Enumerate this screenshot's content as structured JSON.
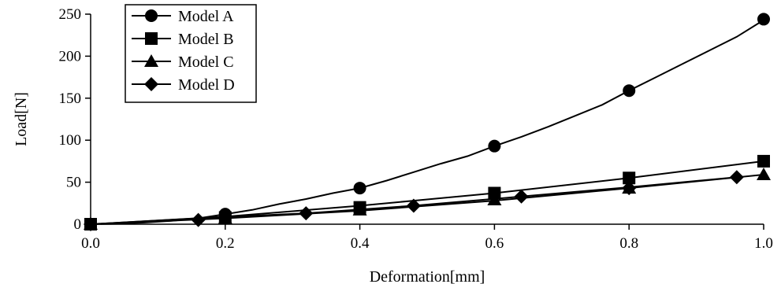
{
  "chart_data": {
    "type": "line",
    "xlabel": "Deformation[mm]",
    "ylabel": "Load[N]",
    "xlim": [
      0,
      1.0
    ],
    "ylim": [
      0,
      250
    ],
    "x_ticks": [
      "0.0",
      "0.2",
      "0.4",
      "0.6",
      "0.8",
      "1.0"
    ],
    "y_ticks": [
      "0",
      "50",
      "100",
      "150",
      "200",
      "250"
    ],
    "grid": false,
    "legend_position": "top-left",
    "series": [
      {
        "name": "Model A",
        "marker": "circle",
        "line": [
          [
            0,
            0
          ],
          [
            0.04,
            0.5
          ],
          [
            0.08,
            2
          ],
          [
            0.12,
            4
          ],
          [
            0.16,
            7
          ],
          [
            0.2,
            12
          ],
          [
            0.24,
            17
          ],
          [
            0.28,
            24
          ],
          [
            0.32,
            30
          ],
          [
            0.36,
            37
          ],
          [
            0.4,
            43
          ],
          [
            0.44,
            52
          ],
          [
            0.48,
            62
          ],
          [
            0.52,
            72
          ],
          [
            0.56,
            81
          ],
          [
            0.6,
            93
          ],
          [
            0.64,
            104
          ],
          [
            0.68,
            116
          ],
          [
            0.72,
            129
          ],
          [
            0.76,
            142
          ],
          [
            0.8,
            159
          ],
          [
            0.84,
            175
          ],
          [
            0.88,
            191
          ],
          [
            0.92,
            207
          ],
          [
            0.96,
            223
          ],
          [
            1.0,
            243
          ]
        ],
        "markers": [
          [
            0,
            0
          ],
          [
            0.2,
            12
          ],
          [
            0.4,
            43
          ],
          [
            0.6,
            93
          ],
          [
            0.8,
            159
          ],
          [
            1.0,
            244
          ]
        ]
      },
      {
        "name": "Model B",
        "marker": "square",
        "line": [
          [
            0,
            0
          ],
          [
            0.2,
            9
          ],
          [
            0.4,
            22
          ],
          [
            0.6,
            37
          ],
          [
            0.8,
            55
          ],
          [
            1.0,
            75
          ]
        ],
        "markers": [
          [
            0,
            0
          ],
          [
            0.2,
            8
          ],
          [
            0.4,
            20
          ],
          [
            0.6,
            37
          ],
          [
            0.8,
            55
          ],
          [
            1.0,
            75
          ]
        ]
      },
      {
        "name": "Model C",
        "marker": "triangle",
        "line": [
          [
            0,
            0
          ],
          [
            0.2,
            7
          ],
          [
            0.4,
            16
          ],
          [
            0.6,
            28
          ],
          [
            0.8,
            43
          ],
          [
            1.0,
            59
          ]
        ],
        "markers": [
          [
            0,
            0
          ],
          [
            0.2,
            7
          ],
          [
            0.4,
            17
          ],
          [
            0.6,
            29
          ],
          [
            0.8,
            43
          ],
          [
            1.0,
            59
          ]
        ]
      },
      {
        "name": "Model D",
        "marker": "diamond",
        "line": [
          [
            0,
            0
          ],
          [
            0.16,
            7
          ],
          [
            0.32,
            13
          ],
          [
            0.48,
            22
          ],
          [
            0.64,
            33
          ],
          [
            0.8,
            44
          ],
          [
            0.96,
            56
          ]
        ],
        "markers": [
          [
            0,
            0
          ],
          [
            0.16,
            5
          ],
          [
            0.32,
            13
          ],
          [
            0.48,
            22
          ],
          [
            0.64,
            33
          ],
          [
            0.8,
            43
          ],
          [
            0.96,
            56
          ]
        ]
      }
    ]
  }
}
